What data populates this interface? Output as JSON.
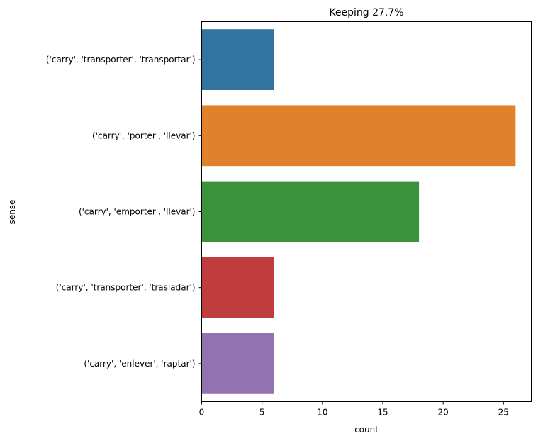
{
  "chart_data": {
    "type": "bar",
    "orientation": "horizontal",
    "title": "Keeping 27.7%",
    "xlabel": "count",
    "ylabel": "sense",
    "categories": [
      "('carry', 'transporter', 'transportar')",
      "('carry', 'porter', 'llevar')",
      "('carry', 'emporter', 'llevar')",
      "('carry', 'transporter', 'trasladar')",
      "('carry', 'enlever', 'raptar')"
    ],
    "values": [
      6,
      26,
      18,
      6,
      6
    ],
    "colors": [
      "#3274a1",
      "#e1812c",
      "#3a923a",
      "#c03d3e",
      "#9372b2"
    ],
    "xlim": [
      0,
      27.3
    ],
    "xticks": [
      0,
      5,
      10,
      15,
      20,
      25
    ],
    "grid": false,
    "legend": "none"
  }
}
